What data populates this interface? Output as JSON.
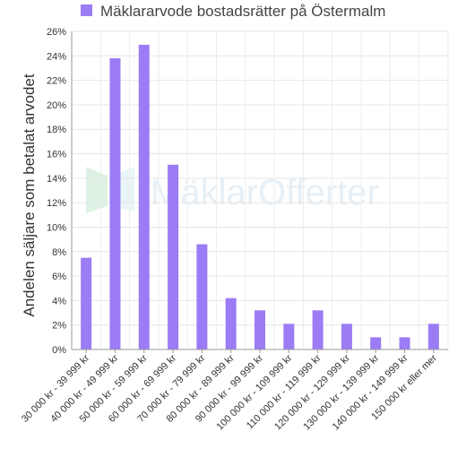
{
  "chart_data": {
    "type": "bar",
    "legend": {
      "label": "Mäklararvode bostadsrätter på Östermalm",
      "placement": "top"
    },
    "ylabel": "Andelen säljare som betalat arvodet",
    "xlabel": "",
    "ylim": [
      0,
      26
    ],
    "yticks": [
      0,
      2,
      4,
      6,
      8,
      10,
      12,
      14,
      16,
      18,
      20,
      22,
      24,
      26
    ],
    "ytick_suffix": "%",
    "grid": true,
    "categories": [
      "30 000 kr - 39 999 kr",
      "40 000 kr - 49 999 kr",
      "50 000 kr - 59 999 kr",
      "60 000 kr - 69 999 kr",
      "70 000 kr - 79 999 kr",
      "80 000 kr - 89 999 kr",
      "90 000 kr - 99 999 kr",
      "100 000 kr - 109 999 kr",
      "110 000 kr - 119 999 kr",
      "120 000 kr - 129 999 kr",
      "130 000 kr - 139 999 kr",
      "140 000 kr - 149 999 kr",
      "150 000 kr eller mer"
    ],
    "values": [
      7.5,
      23.8,
      24.9,
      15.1,
      8.6,
      4.2,
      3.2,
      2.1,
      3.2,
      2.1,
      1.0,
      1.0,
      2.1
    ],
    "bar_color": "#9b7cf5",
    "watermark": "MäklarOfferter"
  }
}
